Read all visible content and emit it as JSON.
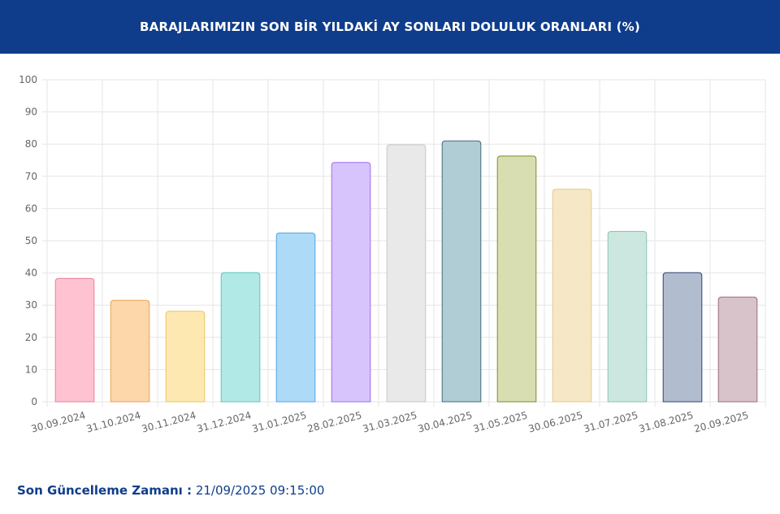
{
  "header": {
    "title": "BARAJLARIMIZIN SON BİR YILDAKİ AY SONLARI DOLULUK ORANLARI (%)"
  },
  "chart_data": {
    "type": "bar",
    "title": "BARAJLARIMIZIN SON BİR YILDAKİ AY SONLARI DOLULUK ORANLARI (%)",
    "xlabel": "",
    "ylabel": "",
    "ylim": [
      0,
      100
    ],
    "yticks": [
      0,
      10,
      20,
      30,
      40,
      50,
      60,
      70,
      80,
      90,
      100
    ],
    "grid": true,
    "legend": "none",
    "categories": [
      "30.09.2024",
      "31.10.2024",
      "30.11.2024",
      "31.12.2024",
      "31.01.2025",
      "28.02.2025",
      "31.03.2025",
      "30.04.2025",
      "31.05.2025",
      "30.06.2025",
      "31.07.2025",
      "31.08.2025",
      "20.09.2025"
    ],
    "values": [
      38.3,
      31.5,
      28.1,
      40.1,
      52.4,
      74.3,
      79.8,
      81.0,
      76.3,
      66.0,
      52.9,
      40.1,
      32.5
    ],
    "colors": [
      {
        "fill": "#ffc2d1",
        "stroke": "#e8809c"
      },
      {
        "fill": "#fdd6a9",
        "stroke": "#e8a55c"
      },
      {
        "fill": "#fde8b2",
        "stroke": "#ecc55c"
      },
      {
        "fill": "#b0e9e5",
        "stroke": "#5cc6bd"
      },
      {
        "fill": "#addaf7",
        "stroke": "#4fa6e0"
      },
      {
        "fill": "#d8c4fd",
        "stroke": "#9a6ff0"
      },
      {
        "fill": "#e9e9ea",
        "stroke": "#c5c6c8"
      },
      {
        "fill": "#b0ccd4",
        "stroke": "#3e6f7c"
      },
      {
        "fill": "#d9deb2",
        "stroke": "#818b2b"
      },
      {
        "fill": "#f6e7c6",
        "stroke": "#e4c98a"
      },
      {
        "fill": "#cbe7df",
        "stroke": "#88c6b3"
      },
      {
        "fill": "#b2bccf",
        "stroke": "#2e4573"
      },
      {
        "fill": "#d9c3ca",
        "stroke": "#9a6c7a"
      }
    ]
  },
  "footer": {
    "label": "Son Güncelleme Zamanı :",
    "value": "21/09/2025 09:15:00"
  }
}
